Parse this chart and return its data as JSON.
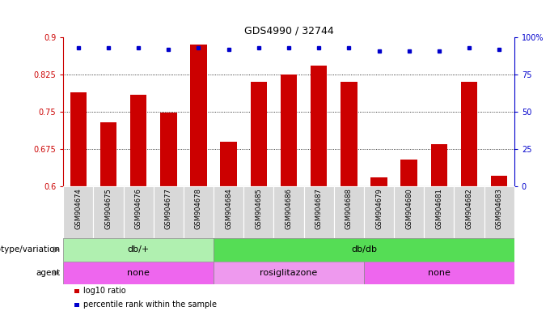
{
  "title": "GDS4990 / 32744",
  "samples": [
    "GSM904674",
    "GSM904675",
    "GSM904676",
    "GSM904677",
    "GSM904678",
    "GSM904684",
    "GSM904685",
    "GSM904686",
    "GSM904687",
    "GSM904688",
    "GSM904679",
    "GSM904680",
    "GSM904681",
    "GSM904682",
    "GSM904683"
  ],
  "log10_ratio": [
    0.79,
    0.73,
    0.785,
    0.748,
    0.885,
    0.69,
    0.81,
    0.825,
    0.843,
    0.81,
    0.618,
    0.655,
    0.685,
    0.81,
    0.622
  ],
  "percentile_rank": [
    93,
    93,
    93,
    92,
    93,
    92,
    93,
    93,
    93,
    93,
    91,
    91,
    91,
    93,
    92
  ],
  "bar_color": "#cc0000",
  "dot_color": "#0000cc",
  "ylim_left": [
    0.6,
    0.9
  ],
  "ylim_right": [
    0,
    100
  ],
  "yticks_left": [
    0.6,
    0.675,
    0.75,
    0.825,
    0.9
  ],
  "yticks_right": [
    0,
    25,
    50,
    75,
    100
  ],
  "ytick_labels_left": [
    "0.6",
    "0.675",
    "0.75",
    "0.825",
    "0.9"
  ],
  "ytick_labels_right": [
    "0",
    "25",
    "50",
    "75",
    "100%"
  ],
  "grid_lines": [
    0.675,
    0.75,
    0.825
  ],
  "genotype_groups": [
    {
      "label": "db/+",
      "start": 0,
      "end": 5,
      "color": "#b0f0b0"
    },
    {
      "label": "db/db",
      "start": 5,
      "end": 15,
      "color": "#55dd55"
    }
  ],
  "agent_groups": [
    {
      "label": "none",
      "start": 0,
      "end": 5,
      "color": "#ee66ee"
    },
    {
      "label": "rosiglitazone",
      "start": 5,
      "end": 10,
      "color": "#ee99ee"
    },
    {
      "label": "none",
      "start": 10,
      "end": 15,
      "color": "#ee66ee"
    }
  ],
  "legend_items": [
    {
      "color": "#cc0000",
      "label": "log10 ratio"
    },
    {
      "color": "#0000cc",
      "label": "percentile rank within the sample"
    }
  ],
  "left_axis_color": "#cc0000",
  "right_axis_color": "#0000cc",
  "tick_label_area_color": "#d8d8d8"
}
